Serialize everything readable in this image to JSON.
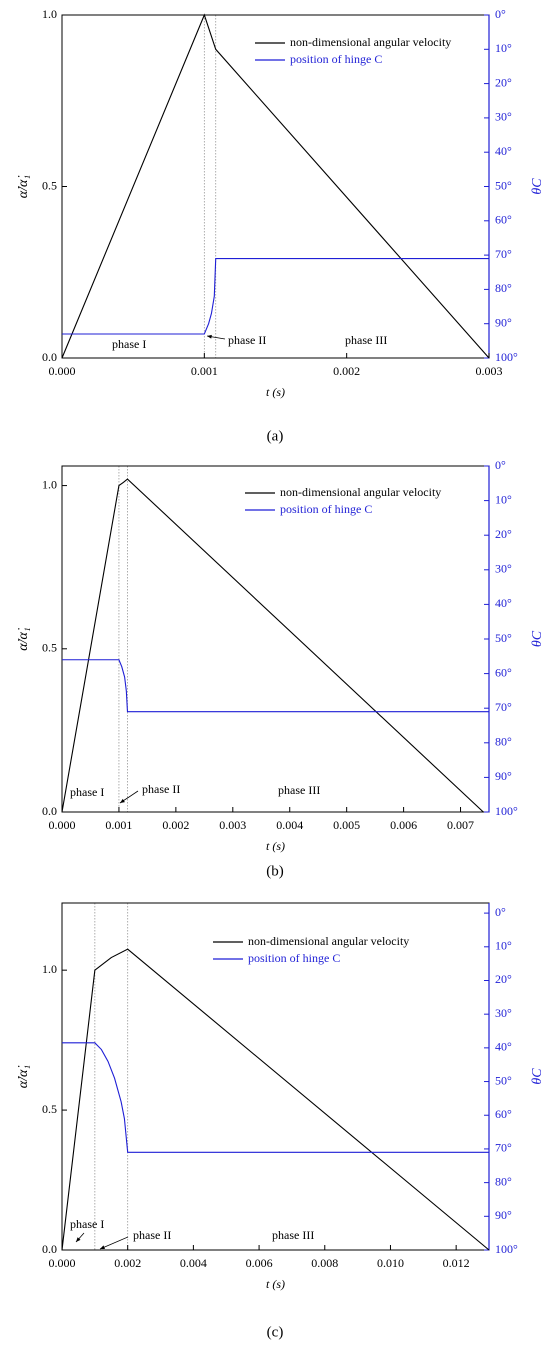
{
  "chart_data": [
    {
      "type": "line",
      "caption": "(a)",
      "xlabel": "t (s)",
      "ylabel": "α̇/α̇₁",
      "y2label": "θC",
      "xlim": [
        0,
        0.003
      ],
      "xticks": [
        {
          "value": 0,
          "label": "0.000"
        },
        {
          "value": 0.001,
          "label": "0.001"
        },
        {
          "value": 0.002,
          "label": "0.002"
        },
        {
          "value": 0.003,
          "label": "0.003"
        }
      ],
      "ylim": [
        0,
        1
      ],
      "yticks": [
        {
          "value": 0,
          "label": "0.0"
        },
        {
          "value": 0.5,
          "label": "0.5"
        },
        {
          "value": 1,
          "label": "1.0"
        }
      ],
      "y2lim": [
        100,
        0
      ],
      "y2ticks": [
        {
          "value": 0,
          "label": "0°"
        },
        {
          "value": 10,
          "label": "10°"
        },
        {
          "value": 20,
          "label": "20°"
        },
        {
          "value": 30,
          "label": "30°"
        },
        {
          "value": 40,
          "label": "40°"
        },
        {
          "value": 50,
          "label": "50°"
        },
        {
          "value": 60,
          "label": "60°"
        },
        {
          "value": 70,
          "label": "70°"
        },
        {
          "value": 80,
          "label": "80°"
        },
        {
          "value": 90,
          "label": "90°"
        },
        {
          "value": 100,
          "label": "100°"
        }
      ],
      "phase_boundaries": [
        0.001,
        0.00108
      ],
      "annotations": [
        "phase I",
        "phase II",
        "phase III"
      ],
      "series": [
        {
          "name": "non-dimensional angular velocity",
          "color": "#000000",
          "x": [
            0,
            0.001,
            0.00108,
            0.003
          ],
          "values": [
            0,
            1.0,
            0.9,
            0.0
          ]
        },
        {
          "name": "position of hinge C",
          "color": "#1f1fd6",
          "axis": "y2",
          "x": [
            0,
            0.001,
            0.00103,
            0.00105,
            0.00107,
            0.00108,
            0.003
          ],
          "values": [
            93,
            93,
            90,
            87,
            82,
            71,
            71
          ]
        }
      ]
    },
    {
      "type": "line",
      "caption": "(b)",
      "xlabel": "t (s)",
      "ylabel": "α̇/α̇₁",
      "y2label": "θC",
      "xlim": [
        0,
        0.0075
      ],
      "xticks": [
        {
          "value": 0,
          "label": "0.000"
        },
        {
          "value": 0.001,
          "label": "0.001"
        },
        {
          "value": 0.002,
          "label": "0.002"
        },
        {
          "value": 0.003,
          "label": "0.003"
        },
        {
          "value": 0.004,
          "label": "0.004"
        },
        {
          "value": 0.005,
          "label": "0.005"
        },
        {
          "value": 0.006,
          "label": "0.006"
        },
        {
          "value": 0.007,
          "label": "0.007"
        }
      ],
      "ylim": [
        0,
        1.06
      ],
      "yticks": [
        {
          "value": 0,
          "label": "0.0"
        },
        {
          "value": 0.5,
          "label": "0.5"
        },
        {
          "value": 1,
          "label": "1.0"
        }
      ],
      "y2lim": [
        100,
        0
      ],
      "y2ticks": [
        {
          "value": 0,
          "label": "0°"
        },
        {
          "value": 10,
          "label": "10°"
        },
        {
          "value": 20,
          "label": "20°"
        },
        {
          "value": 30,
          "label": "30°"
        },
        {
          "value": 40,
          "label": "40°"
        },
        {
          "value": 50,
          "label": "50°"
        },
        {
          "value": 60,
          "label": "60°"
        },
        {
          "value": 70,
          "label": "70°"
        },
        {
          "value": 80,
          "label": "80°"
        },
        {
          "value": 90,
          "label": "90°"
        },
        {
          "value": 100,
          "label": "100°"
        }
      ],
      "phase_boundaries": [
        0.001,
        0.00115
      ],
      "annotations": [
        "phase I",
        "phase II",
        "phase III"
      ],
      "series": [
        {
          "name": "non-dimensional angular velocity",
          "color": "#000000",
          "x": [
            0,
            0.001,
            0.00108,
            0.00115,
            0.0074
          ],
          "values": [
            0,
            1.0,
            1.01,
            1.02,
            0.0
          ]
        },
        {
          "name": "position of hinge C",
          "color": "#1f1fd6",
          "axis": "y2",
          "x": [
            0,
            0.001,
            0.00105,
            0.0011,
            0.00113,
            0.00115,
            0.0075
          ],
          "values": [
            56,
            56,
            58,
            61,
            65,
            71,
            71
          ]
        }
      ]
    },
    {
      "type": "line",
      "caption": "(c)",
      "xlabel": "t (s)",
      "ylabel": "α̇/α̇₁",
      "y2label": "θC",
      "xlim": [
        0,
        0.013
      ],
      "xticks": [
        {
          "value": 0,
          "label": "0.000"
        },
        {
          "value": 0.002,
          "label": "0.002"
        },
        {
          "value": 0.004,
          "label": "0.004"
        },
        {
          "value": 0.006,
          "label": "0.006"
        },
        {
          "value": 0.008,
          "label": "0.008"
        },
        {
          "value": 0.01,
          "label": "0.010"
        },
        {
          "value": 0.012,
          "label": "0.012"
        }
      ],
      "ylim": [
        0,
        1.24
      ],
      "yticks": [
        {
          "value": 0,
          "label": "0.0"
        },
        {
          "value": 0.5,
          "label": "0.5"
        },
        {
          "value": 1,
          "label": "1.0"
        }
      ],
      "y2lim": [
        100,
        -3
      ],
      "y2ticks": [
        {
          "value": 0,
          "label": "0°"
        },
        {
          "value": 10,
          "label": "10°"
        },
        {
          "value": 20,
          "label": "20°"
        },
        {
          "value": 30,
          "label": "30°"
        },
        {
          "value": 40,
          "label": "40°"
        },
        {
          "value": 50,
          "label": "50°"
        },
        {
          "value": 60,
          "label": "60°"
        },
        {
          "value": 70,
          "label": "70°"
        },
        {
          "value": 80,
          "label": "80°"
        },
        {
          "value": 90,
          "label": "90°"
        },
        {
          "value": 100,
          "label": "100°"
        }
      ],
      "phase_boundaries": [
        0.001,
        0.002
      ],
      "annotations": [
        "phase I",
        "phase II",
        "phase III"
      ],
      "series": [
        {
          "name": "non-dimensional angular velocity",
          "color": "#000000",
          "x": [
            0,
            0.001,
            0.0015,
            0.002,
            0.013
          ],
          "values": [
            0,
            1.0,
            1.045,
            1.075,
            0.0
          ]
        },
        {
          "name": "position of hinge C",
          "color": "#1f1fd6",
          "axis": "y2",
          "x": [
            0,
            0.001,
            0.0012,
            0.0014,
            0.0016,
            0.0018,
            0.0019,
            0.002,
            0.013
          ],
          "values": [
            38.5,
            38.5,
            40.5,
            44,
            49,
            56,
            61,
            71,
            71
          ]
        }
      ]
    }
  ]
}
